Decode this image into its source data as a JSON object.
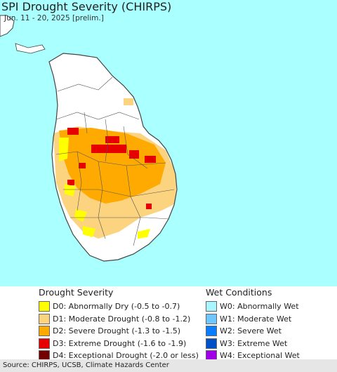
{
  "map": {
    "title": "SPI Drought Severity (CHIRPS)",
    "subtitle": "Jun. 11 - 20, 2025 [prelim.]",
    "colors": {
      "ocean": "#aaffff",
      "land": "#ffffff",
      "border": "#444444",
      "D0": "#ffff00",
      "D1": "#fcd37f",
      "D2": "#ffaa00",
      "D3": "#e60000",
      "D4": "#730000"
    }
  },
  "legend": {
    "drought": {
      "heading": "Drought Severity",
      "items": [
        {
          "code": "D0",
          "label": "D0: Abnormally Dry (-0.5 to -0.7)",
          "color": "#ffff00"
        },
        {
          "code": "D1",
          "label": "D1: Moderate Drought (-0.8 to -1.2)",
          "color": "#fcd37f"
        },
        {
          "code": "D2",
          "label": "D2: Severe Drought (-1.3 to -1.5)",
          "color": "#ffaa00"
        },
        {
          "code": "D3",
          "label": "D3: Extreme Drought (-1.6 to -1.9)",
          "color": "#e60000"
        },
        {
          "code": "D4",
          "label": "D4: Exceptional Drought (-2.0 or less)",
          "color": "#730000"
        }
      ]
    },
    "wet": {
      "heading": "Wet Conditions",
      "items": [
        {
          "code": "W0",
          "label": "W0: Abnormally Wet",
          "color": "#aaf5ff"
        },
        {
          "code": "W1",
          "label": "W1: Moderate Wet",
          "color": "#6ec8ff"
        },
        {
          "code": "W2",
          "label": "W2: Severe Wet",
          "color": "#0a7dff"
        },
        {
          "code": "W3",
          "label": "W3: Extreme Wet",
          "color": "#0050c8"
        },
        {
          "code": "W4",
          "label": "W4: Exceptional Wet",
          "color": "#a000e6"
        }
      ]
    }
  },
  "footer": {
    "source": "Source: CHIRPS, UCSB, Climate Hazards Center"
  }
}
